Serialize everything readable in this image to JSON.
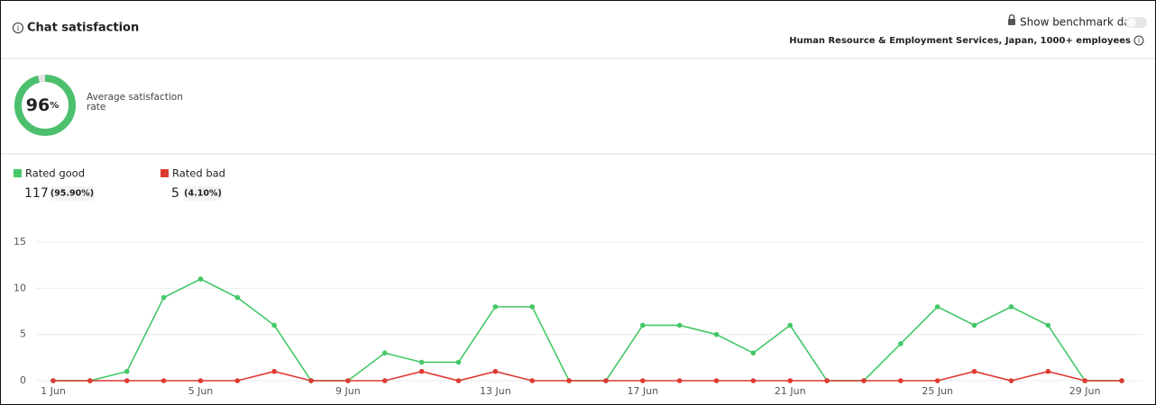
{
  "header": {
    "title": "Chat satisfaction",
    "benchmark_toggle": "Show benchmark data",
    "segment": "Human Resource & Employment Services, Japan, 1000+ employees"
  },
  "summary": {
    "rate": 96,
    "rate_unit": "%",
    "rate_caption": "Average satisfaction rate",
    "rate_color": "#4cc06d",
    "rate_max": 100,
    "good_count": 117,
    "good_pct": "(95.90%)",
    "bad_count": 5,
    "bad_pct": "(4.10%)"
  },
  "chart_data": {
    "type": "line",
    "categories": [
      "1 Jun",
      null,
      null,
      null,
      "5 Jun",
      null,
      null,
      null,
      "9 Jun",
      null,
      null,
      null,
      "13 Jun",
      null,
      null,
      null,
      "17 Jun",
      null,
      null,
      null,
      "21 Jun",
      null,
      null,
      null,
      "25 Jun",
      null,
      null,
      null,
      "29 Jun",
      null
    ],
    "series": [
      {
        "name": "Rated good",
        "color": "#44c767",
        "values": [
          0,
          0,
          1,
          9,
          11,
          9,
          6,
          0,
          0,
          3,
          2,
          2,
          8,
          8,
          0,
          0,
          6,
          6,
          5,
          3,
          6,
          0,
          0,
          4,
          8,
          6,
          8,
          6,
          0,
          0
        ]
      },
      {
        "name": "Rated bad",
        "color": "#dc3a32",
        "values": [
          0,
          0,
          0,
          0,
          0,
          0,
          1,
          0,
          0,
          0,
          1,
          0,
          1,
          0,
          0,
          0,
          0,
          0,
          0,
          0,
          0,
          0,
          0,
          0,
          0,
          1,
          0,
          1,
          0,
          0
        ]
      }
    ],
    "ylim": [
      0,
      15
    ],
    "yticks": [
      0,
      5,
      10,
      15
    ],
    "grid": true
  }
}
